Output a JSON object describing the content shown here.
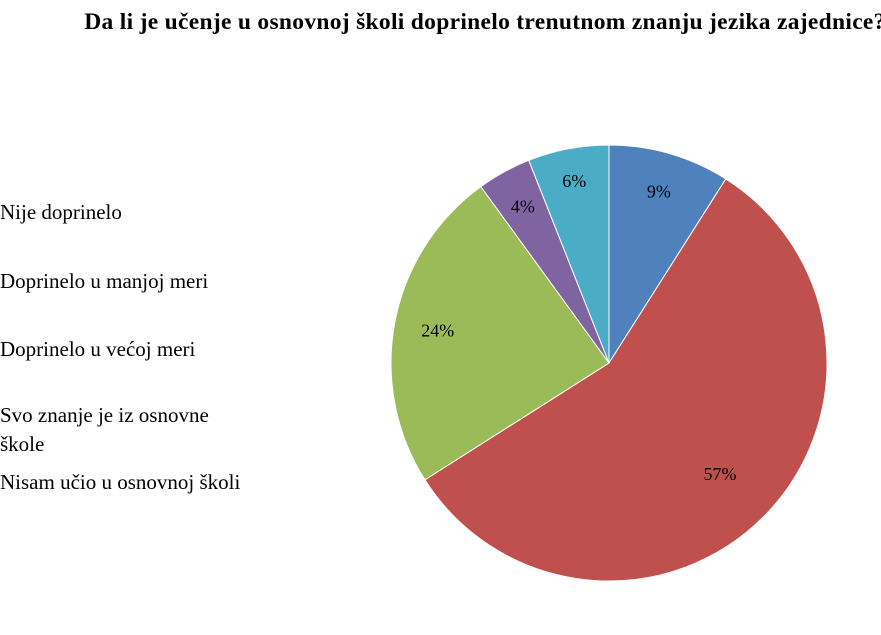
{
  "chart_data": {
    "type": "pie",
    "title": "Da li je učenje u osnovnoj školi doprinelo trenutnom znanju jezika zajednice?",
    "slices": [
      {
        "label": "Nije doprinelo",
        "value": 9,
        "display": "9%",
        "color": "#4F81BD"
      },
      {
        "label": "Doprinelo u manjoj meri",
        "value": 57,
        "display": "57%",
        "color": "#C0504D"
      },
      {
        "label": "Doprinelo u većoj meri",
        "value": 24,
        "display": "24%",
        "color": "#9BBB59"
      },
      {
        "label": "Svo znanje je iz osnovne\nškole",
        "value": 4,
        "display": "4%",
        "color": "#8064A2"
      },
      {
        "label": "Nisam učio u osnovnoj školi",
        "value": 6,
        "display": "6%",
        "color": "#4BACC6"
      }
    ],
    "legend_position": "left"
  }
}
